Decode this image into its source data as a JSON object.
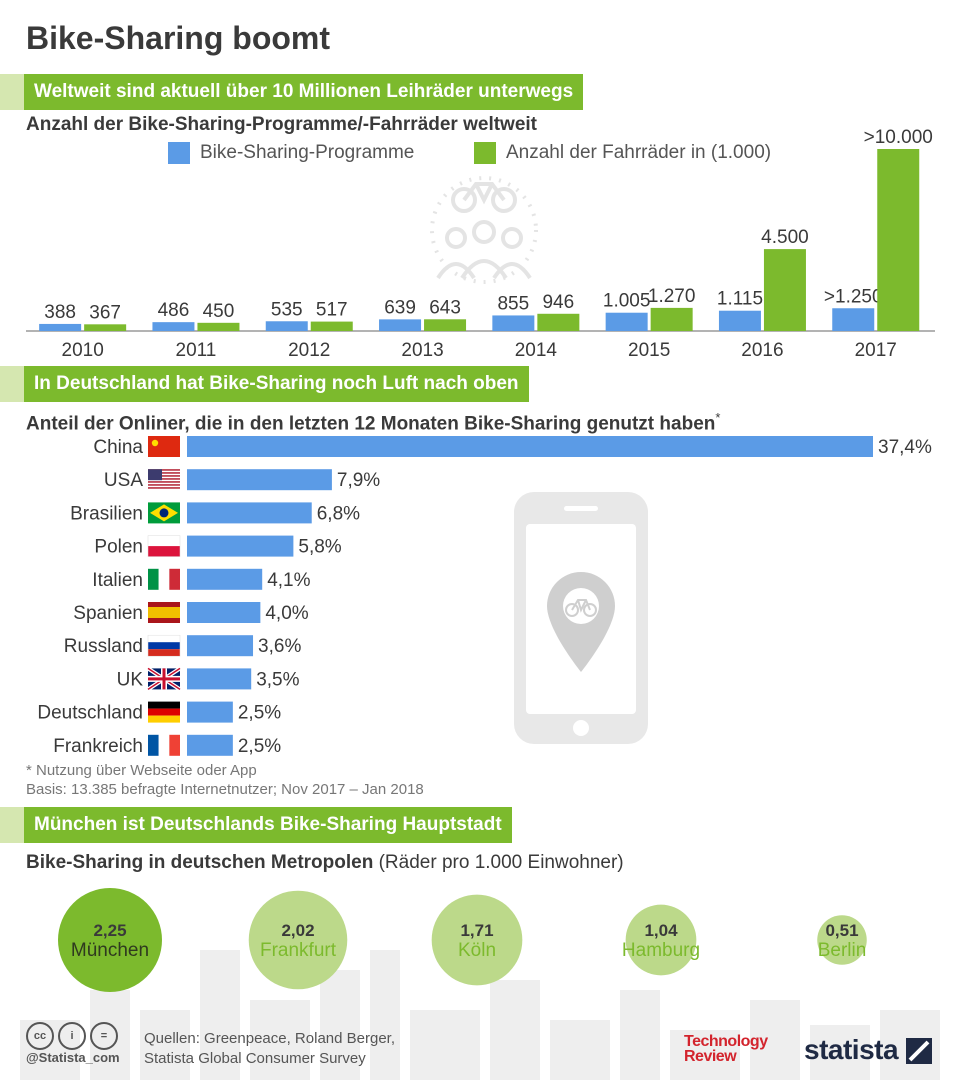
{
  "title": "Bike-Sharing boomt",
  "section1": {
    "banner": "Weltweit sind aktuell über 10 Millionen Leihräder unterwegs",
    "subtitle": "Anzahl der Bike-Sharing-Programme/-Fahrräder weltweit"
  },
  "section2": {
    "banner": "In Deutschland hat Bike-Sharing noch Luft nach oben",
    "subtitle": "Anteil der Onliner, die in den letzten 12 Monaten Bike-Sharing genutzt haben",
    "subtitle_mark": "*",
    "note1": "* Nutzung über Webseite oder App",
    "note2": "Basis: 13.385 befragte Internetnutzer; Nov 2017 – Jan 2018"
  },
  "section3": {
    "banner": "München ist Deutschlands Bike-Sharing Hauptstadt",
    "subtitle": "Bike-Sharing in deutschen Metropolen",
    "subtitle_light": "(Räder pro 1.000 Einwohner)"
  },
  "footer": {
    "handle": "@Statista_com",
    "source_line1": "Quellen: Greenpeace, Roland Berger,",
    "source_line2": "Statista Global Consumer Survey",
    "cc_labels": [
      "cc",
      "i",
      "="
    ],
    "logo1_line1": "Technology",
    "logo1_line2": "Review",
    "logo2": "statista"
  },
  "colors": {
    "blue": "#5b9be6",
    "green": "#7cba2d",
    "banner_lead": "#d5e7b0",
    "circle_light": "#bcd98a"
  },
  "chart_data": [
    {
      "type": "bar",
      "categories": [
        "2010",
        "2011",
        "2012",
        "2013",
        "2014",
        "2015",
        "2016",
        "2017"
      ],
      "series": [
        {
          "name": "Bike-Sharing-Programme",
          "color": "#5b9be6",
          "values": [
            388,
            486,
            535,
            639,
            855,
            1005,
            1115,
            1250
          ],
          "labels": [
            "388",
            "486",
            "535",
            "639",
            "855",
            "1.005",
            "1.115",
            ">1.250"
          ]
        },
        {
          "name": "Anzahl der Fahrräder in (1.000)",
          "color": "#7cba2d",
          "values": [
            367,
            450,
            517,
            643,
            946,
            1270,
            4500,
            10000
          ],
          "labels": [
            "367",
            "450",
            "517",
            "643",
            "946",
            "1.270",
            "4.500",
            ">10.000"
          ]
        }
      ],
      "ylim": [
        0,
        10000
      ],
      "legend": "top",
      "grid": false
    },
    {
      "type": "bar",
      "orientation": "horizontal",
      "categories": [
        "China",
        "USA",
        "Brasilien",
        "Polen",
        "Italien",
        "Spanien",
        "Russland",
        "UK",
        "Deutschland",
        "Frankreich"
      ],
      "values": [
        37.4,
        7.9,
        6.8,
        5.8,
        4.1,
        4.0,
        3.6,
        3.5,
        2.5,
        2.5
      ],
      "labels": [
        "37,4%",
        "7,9%",
        "6,8%",
        "5,8%",
        "4,1%",
        "4,0%",
        "3,6%",
        "3,5%",
        "2,5%",
        "2,5%"
      ],
      "flags": [
        "china-flag-icon",
        "usa-flag-icon",
        "brazil-flag-icon",
        "poland-flag-icon",
        "italy-flag-icon",
        "spain-flag-icon",
        "russia-flag-icon",
        "uk-flag-icon",
        "germany-flag-icon",
        "france-flag-icon"
      ],
      "color": "#5b9be6",
      "xlim": [
        0,
        37.4
      ],
      "grid": false
    },
    {
      "type": "bubble",
      "categories": [
        "München",
        "Frankfurt",
        "Köln",
        "Hamburg",
        "Berlin"
      ],
      "values": [
        2.25,
        2.02,
        1.71,
        1.04,
        0.51
      ],
      "labels": [
        "2,25",
        "2,02",
        "1,71",
        "1,04",
        "0,51"
      ],
      "colors": [
        "#7cba2d",
        "#bcd98a",
        "#bcd98a",
        "#bcd98a",
        "#bcd98a"
      ]
    }
  ]
}
